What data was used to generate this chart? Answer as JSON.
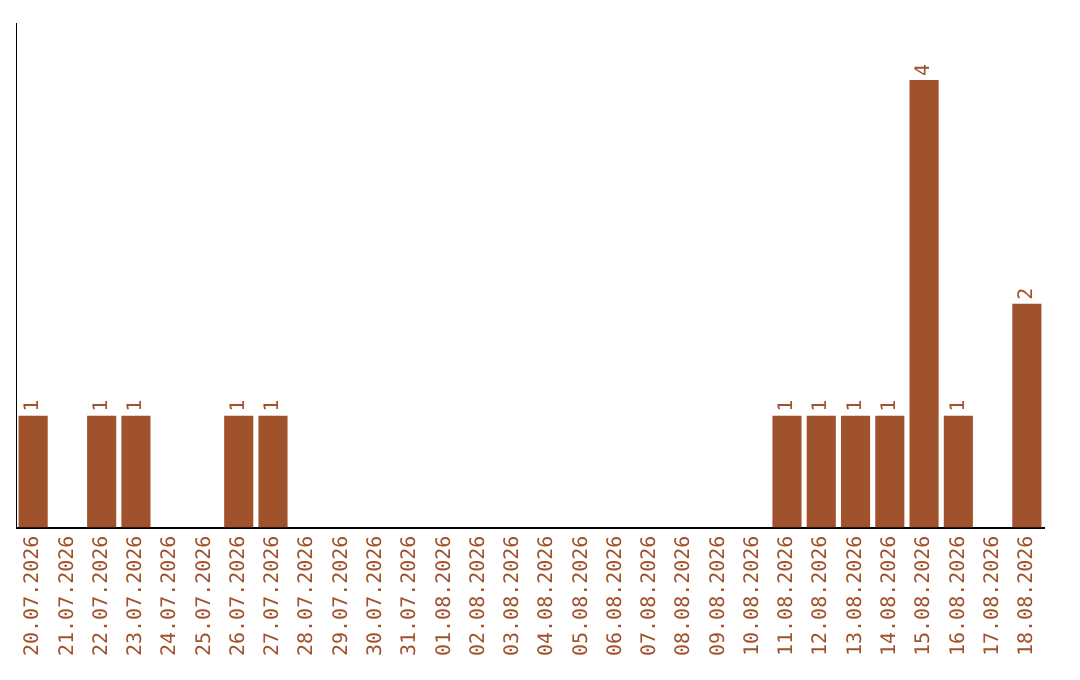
{
  "chart_data": {
    "type": "bar",
    "categories": [
      "20.07.2026",
      "21.07.2026",
      "22.07.2026",
      "23.07.2026",
      "24.07.2026",
      "25.07.2026",
      "26.07.2026",
      "27.07.2026",
      "28.07.2026",
      "29.07.2026",
      "30.07.2026",
      "31.07.2026",
      "01.08.2026",
      "02.08.2026",
      "03.08.2026",
      "04.08.2026",
      "05.08.2026",
      "06.08.2026",
      "07.08.2026",
      "08.08.2026",
      "09.08.2026",
      "10.08.2026",
      "11.08.2026",
      "12.08.2026",
      "13.08.2026",
      "14.08.2026",
      "15.08.2026",
      "16.08.2026",
      "17.08.2026",
      "18.08.2026"
    ],
    "values": [
      1,
      0,
      1,
      1,
      0,
      0,
      1,
      1,
      0,
      0,
      0,
      0,
      0,
      0,
      0,
      0,
      0,
      0,
      0,
      0,
      0,
      0,
      1,
      1,
      1,
      1,
      4,
      1,
      0,
      2
    ],
    "value_labels": [
      "1",
      null,
      "1",
      "1",
      null,
      null,
      "1",
      "1",
      null,
      null,
      null,
      null,
      null,
      null,
      null,
      null,
      null,
      null,
      null,
      null,
      null,
      null,
      "1",
      "1",
      "1",
      "1",
      "4",
      "1",
      null,
      "2"
    ],
    "color": "#a0522d",
    "grid": false,
    "legend": false,
    "tick_labels": "x"
  }
}
